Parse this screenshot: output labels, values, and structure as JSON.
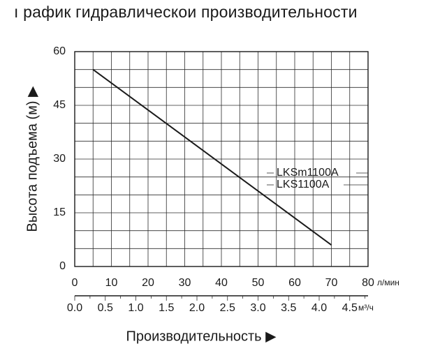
{
  "chart_data": {
    "type": "line",
    "title": "ı рафик гидравлическои производительности",
    "ylabel": "Высота подъема (м) ▶",
    "xlabel": "Производительность ▶",
    "x_unit": "л/мин",
    "x2_unit": "м³/ч",
    "ylim": [
      0,
      60
    ],
    "xlim": [
      0,
      80
    ],
    "x2lim": [
      0,
      4.8
    ],
    "grid": true,
    "y_ticks": [
      "0",
      "15",
      "30",
      "45",
      "60"
    ],
    "x_ticks": [
      "0",
      "10",
      "20",
      "30",
      "40",
      "50",
      "60",
      "70",
      "80"
    ],
    "x2_ticks": [
      "0.0",
      "0.5",
      "1.0",
      "1.5",
      "2.0",
      "2.5",
      "3.0",
      "3.5",
      "4.0",
      "4.5"
    ],
    "series_labels": [
      "LKSm1100A",
      "LKS1100A"
    ],
    "series": [
      {
        "x": [
          5,
          70
        ],
        "y": [
          55,
          6
        ]
      }
    ]
  }
}
